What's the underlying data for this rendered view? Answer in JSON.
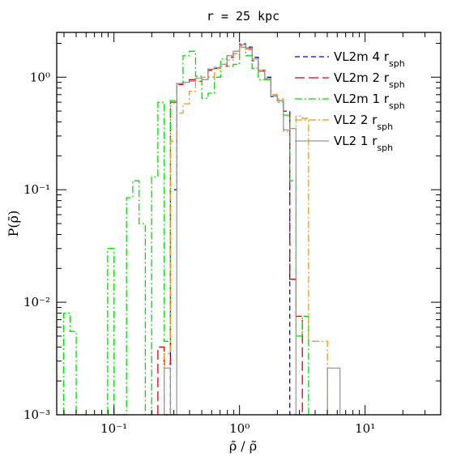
{
  "chart_data": {
    "type": "line",
    "title": "r = 25 kpc",
    "xlabel": "ρ̄ / ρ̃",
    "ylabel": "P(ρ̄)",
    "xscale": "log",
    "yscale": "log",
    "xlim": [
      0.035,
      40
    ],
    "ylim": [
      0.001,
      2.5
    ],
    "legend_position": "top-right",
    "x_ticks": [
      {
        "value": 0.1,
        "label": "10⁻¹"
      },
      {
        "value": 1,
        "label": "10⁰"
      },
      {
        "value": 10,
        "label": "10¹"
      }
    ],
    "y_ticks": [
      {
        "value": 0.001,
        "label": "10⁻³"
      },
      {
        "value": 0.01,
        "label": "10⁻²"
      },
      {
        "value": 0.1,
        "label": "10⁻¹"
      },
      {
        "value": 1,
        "label": "10⁰"
      }
    ],
    "series": [
      {
        "name": "VL2m 4 r",
        "name_sub": "sph",
        "color": "#0000dd",
        "dash": "6,4",
        "edges": [
          0.2512,
          0.2818,
          0.3162,
          0.3548,
          0.3981,
          0.4467,
          0.5012,
          0.5623,
          0.631,
          0.7079,
          0.7943,
          0.8913,
          1.0,
          1.122,
          1.259,
          1.413,
          1.585,
          1.778,
          1.995,
          2.239,
          2.512,
          2.818
        ],
        "values": [
          0.001,
          0.1,
          0.88,
          0.9,
          0.92,
          0.98,
          0.95,
          1.18,
          1.22,
          1.3,
          1.55,
          1.7,
          1.98,
          1.85,
          1.5,
          1.15,
          1.0,
          0.68,
          0.62,
          0.5,
          0.001
        ]
      },
      {
        "name": "VL2m 2 r",
        "name_sub": "sph",
        "color": "#dd0000",
        "dash": "12,5",
        "edges": [
          0.2239,
          0.2512,
          0.2818,
          0.3162,
          0.3548,
          0.3981,
          0.4467,
          0.5012,
          0.5623,
          0.631,
          0.7079,
          0.7943,
          0.8913,
          1.0,
          1.122,
          1.259,
          1.413,
          1.585,
          1.778,
          1.995,
          2.239,
          2.512,
          2.818,
          3.162
        ],
        "values": [
          0.004,
          0.0028,
          0.6,
          0.86,
          0.9,
          0.95,
          0.92,
          0.95,
          1.15,
          1.2,
          1.25,
          1.5,
          1.62,
          1.92,
          1.8,
          1.4,
          1.15,
          0.98,
          0.67,
          0.62,
          0.5,
          0.016,
          0.0075
        ]
      },
      {
        "name": "VL2m 1 r",
        "name_sub": "sph",
        "color": "#00dd00",
        "dash": "9,3,2,3",
        "edges": [
          0.0398,
          0.0447,
          0.0501,
          0.0562,
          0.0631,
          0.0708,
          0.0794,
          0.0891,
          0.1,
          0.1122,
          0.1259,
          0.1413,
          0.1585,
          0.1778,
          0.1995,
          0.2239,
          0.2512,
          0.2818,
          0.3162,
          0.3548,
          0.3981,
          0.4467,
          0.5012,
          0.5623,
          0.631,
          0.7079,
          0.7943,
          0.8913,
          1.0,
          1.122,
          1.259,
          1.413,
          1.585,
          1.778,
          1.995,
          2.239,
          2.512,
          2.818,
          3.162,
          3.548
        ],
        "values": [
          0.008,
          0.0055,
          0.001,
          0.001,
          0.001,
          0.001,
          0.001,
          0.03,
          0.001,
          0.001,
          0.085,
          0.12,
          0.05,
          0.001,
          0.13,
          0.6,
          0.0045,
          0.62,
          0.88,
          1.55,
          1.7,
          1.02,
          0.65,
          0.72,
          1.0,
          1.45,
          1.25,
          1.3,
          1.85,
          1.55,
          1.2,
          0.95,
          0.95,
          0.68,
          0.6,
          0.46,
          0.12,
          0.005,
          0.0075
        ]
      },
      {
        "name": "VL2 2 r",
        "name_sub": "sph",
        "color": "#ee9922",
        "dash": "9,3,2,3",
        "edges": [
          0.2512,
          0.2818,
          0.3162,
          0.3548,
          0.3981,
          0.4467,
          0.5012,
          0.5623,
          0.631,
          0.7079,
          0.7943,
          0.8913,
          1.0,
          1.122,
          1.259,
          1.413,
          1.585,
          1.778,
          1.995,
          2.239,
          2.512,
          2.818,
          3.162,
          3.548,
          3.981,
          4.467,
          5.012
        ],
        "values": [
          0.0035,
          0.27,
          0.48,
          0.58,
          0.75,
          0.92,
          1.0,
          1.0,
          1.2,
          1.25,
          1.42,
          1.62,
          1.85,
          1.75,
          1.45,
          1.15,
          0.96,
          0.7,
          0.64,
          0.33,
          0.35,
          0.45,
          0.43,
          0.0045,
          0.0045,
          0.0045
        ]
      },
      {
        "name": "VL2 1 r",
        "name_sub": "sph",
        "color": "#999999",
        "dash": "",
        "edges": [
          0.2512,
          0.2818,
          0.3162,
          0.3548,
          0.3981,
          0.4467,
          0.5012,
          0.5623,
          0.631,
          0.7079,
          0.7943,
          0.8913,
          1.0,
          1.122,
          1.259,
          1.413,
          1.585,
          1.778,
          1.995,
          2.239,
          2.512,
          2.818,
          3.162,
          3.548,
          3.981,
          4.467,
          5.012,
          5.623,
          6.31
        ],
        "values": [
          0.0026,
          0.001,
          0.88,
          0.9,
          0.92,
          0.98,
          0.95,
          1.18,
          1.22,
          1.3,
          1.55,
          1.7,
          1.95,
          1.82,
          1.45,
          1.12,
          0.98,
          0.68,
          0.62,
          0.34,
          0.35,
          0.001,
          0.001,
          0.001,
          0.001,
          0.001,
          0.0026,
          0.0026
        ]
      }
    ]
  }
}
